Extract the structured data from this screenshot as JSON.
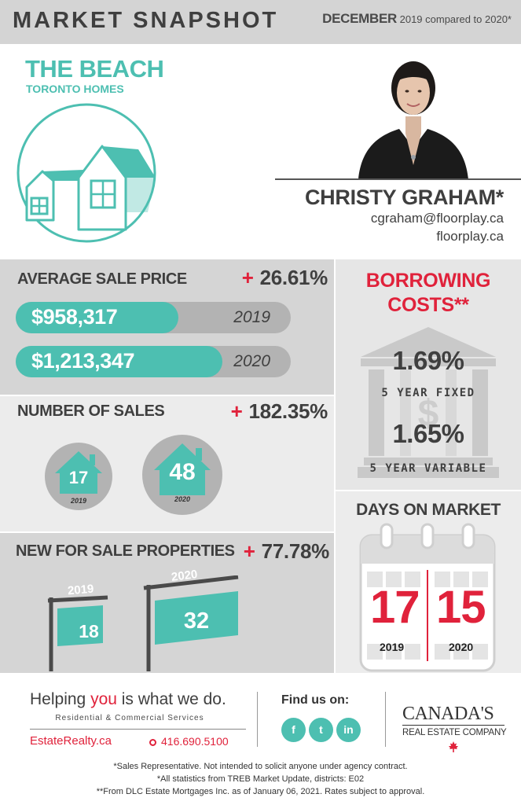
{
  "header": {
    "title": "MARKET SNAPSHOT",
    "period_month": "DECEMBER",
    "period_text": "2019 compared to 2020*"
  },
  "area": {
    "name": "THE BEACH",
    "subtitle": "TORONTO HOMES",
    "icon": "house-outline-icon"
  },
  "agent": {
    "name": "CHRISTY GRAHAM*",
    "email": "cgraham@floorplay.ca",
    "website": "floorplay.ca"
  },
  "average_sale_price": {
    "title": "AVERAGE SALE PRICE",
    "change": "26.61%",
    "bars": [
      {
        "value": "$958,317",
        "year": "2019",
        "fill_fraction": 0.59
      },
      {
        "value": "$1,213,347",
        "year": "2020",
        "fill_fraction": 0.75
      }
    ]
  },
  "number_of_sales": {
    "title": "NUMBER OF SALES",
    "change": "182.35%",
    "items": [
      {
        "value": "17",
        "year": "2019"
      },
      {
        "value": "48",
        "year": "2020"
      }
    ]
  },
  "new_for_sale": {
    "title": "NEW FOR SALE PROPERTIES",
    "change": "77.78%",
    "items": [
      {
        "value": "18",
        "year": "2019"
      },
      {
        "value": "32",
        "year": "2020"
      }
    ]
  },
  "borrowing_costs": {
    "title_line1": "BORROWING",
    "title_line2": "COSTS**",
    "icon": "bank-icon",
    "rates": [
      {
        "value": "1.69%",
        "label": "5 YEAR FIXED"
      },
      {
        "value": "1.65%",
        "label": "5 YEAR VARIABLE"
      }
    ]
  },
  "days_on_market": {
    "title": "DAYS ON MARKET",
    "icon": "calendar-icon",
    "items": [
      {
        "value": "17",
        "year": "2019"
      },
      {
        "value": "15",
        "year": "2020"
      }
    ]
  },
  "footer": {
    "tagline_before": "Helping ",
    "tagline_highlight": "you",
    "tagline_after": " is what we do.",
    "services": "Residential & Commercial Services",
    "website": "EstateRealty.ca",
    "phone": "416.690.5100",
    "find_us": "Find us on:",
    "social": [
      {
        "label": "f",
        "icon": "facebook-icon"
      },
      {
        "label": "t",
        "icon": "twitter-icon"
      },
      {
        "label": "in",
        "icon": "linkedin-icon"
      }
    ],
    "company_name": "CANADA'S",
    "company_sub": "REAL ESTATE COMPANY",
    "footnotes": [
      "*Sales Representative. Not intended to solicit anyone under agency contract.",
      "*All statistics from TREB Market Update, districts: E02",
      "**From DLC Estate Mortgages Inc. as of January 06, 2021. Rates subject to approval."
    ]
  },
  "colors": {
    "teal": "#4dbfb1",
    "red": "#e0223b",
    "dark": "#3f3f3f",
    "grey": "#d5d5d5"
  }
}
